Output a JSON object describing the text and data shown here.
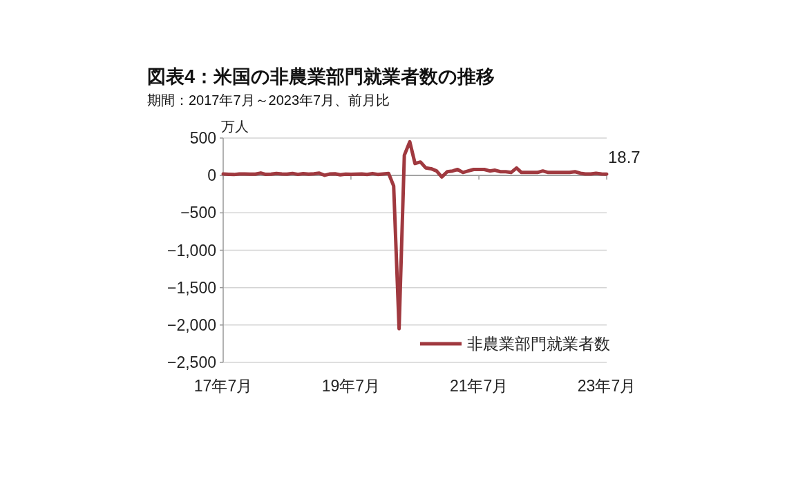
{
  "chart_data": {
    "type": "line",
    "title": "図表4：米国の非農業部門就業者数の推移",
    "subtitle": "期間：2017年7月～2023年7月、前月比",
    "ylabel": "万人",
    "x": [
      "2017-07",
      "2017-08",
      "2017-09",
      "2017-10",
      "2017-11",
      "2017-12",
      "2018-01",
      "2018-02",
      "2018-03",
      "2018-04",
      "2018-05",
      "2018-06",
      "2018-07",
      "2018-08",
      "2018-09",
      "2018-10",
      "2018-11",
      "2018-12",
      "2019-01",
      "2019-02",
      "2019-03",
      "2019-04",
      "2019-05",
      "2019-06",
      "2019-07",
      "2019-08",
      "2019-09",
      "2019-10",
      "2019-11",
      "2019-12",
      "2020-01",
      "2020-02",
      "2020-03",
      "2020-04",
      "2020-05",
      "2020-06",
      "2020-07",
      "2020-08",
      "2020-09",
      "2020-10",
      "2020-11",
      "2020-12",
      "2021-01",
      "2021-02",
      "2021-03",
      "2021-04",
      "2021-05",
      "2021-06",
      "2021-07",
      "2021-08",
      "2021-09",
      "2021-10",
      "2021-11",
      "2021-12",
      "2022-01",
      "2022-02",
      "2022-03",
      "2022-04",
      "2022-05",
      "2022-06",
      "2022-07",
      "2022-08",
      "2022-09",
      "2022-10",
      "2022-11",
      "2022-12",
      "2023-01",
      "2023-02",
      "2023-03",
      "2023-04",
      "2023-05",
      "2023-06",
      "2023-07"
    ],
    "series": [
      {
        "name": "非農業部門就業者数",
        "color": "#a0393f",
        "values": [
          19,
          16,
          12,
          20,
          20,
          17,
          18,
          33,
          15,
          17,
          27,
          21,
          17,
          28,
          14,
          25,
          17,
          23,
          31,
          2,
          19,
          22,
          8,
          18,
          16,
          17,
          19,
          13,
          26,
          14,
          21,
          28,
          -140,
          -2050,
          270,
          450,
          160,
          180,
          100,
          90,
          60,
          -20,
          50,
          60,
          80,
          40,
          60,
          80,
          80,
          80,
          60,
          70,
          50,
          50,
          40,
          100,
          40,
          40,
          40,
          40,
          60,
          40,
          40,
          40,
          40,
          40,
          50,
          30,
          20,
          20,
          30,
          20,
          18.7
        ],
        "value_labels": [
          null,
          null,
          null,
          null,
          null,
          null,
          null,
          null,
          null,
          null,
          null,
          null,
          null,
          null,
          null,
          null,
          null,
          null,
          null,
          null,
          null,
          null,
          null,
          null,
          null,
          null,
          null,
          null,
          null,
          null,
          null,
          null,
          null,
          null,
          null,
          null,
          null,
          null,
          null,
          null,
          null,
          null,
          null,
          null,
          null,
          null,
          null,
          null,
          null,
          null,
          null,
          null,
          null,
          null,
          null,
          null,
          null,
          null,
          null,
          null,
          null,
          null,
          null,
          null,
          null,
          null,
          null,
          null,
          null,
          null,
          null,
          null,
          "18.7"
        ]
      }
    ],
    "xlim": [
      "2017-07",
      "2023-07"
    ],
    "xticks": [
      {
        "value": "2017-07",
        "label": "17年7月"
      },
      {
        "value": "2019-07",
        "label": "19年7月"
      },
      {
        "value": "2021-07",
        "label": "21年7月"
      },
      {
        "value": "2023-07",
        "label": "23年7月"
      }
    ],
    "ylim": [
      -2500,
      500
    ],
    "yticks": [
      {
        "value": 500,
        "label": "500"
      },
      {
        "value": 0,
        "label": "0"
      },
      {
        "value": -500,
        "label": "−500"
      },
      {
        "value": -1000,
        "label": "−1,000"
      },
      {
        "value": -1500,
        "label": "−1,500"
      },
      {
        "value": -2000,
        "label": "−2,000"
      },
      {
        "value": -2500,
        "label": "−2,500"
      }
    ],
    "grid": "y",
    "legend": "bottom right",
    "marker": "none",
    "line_style": "solid"
  }
}
